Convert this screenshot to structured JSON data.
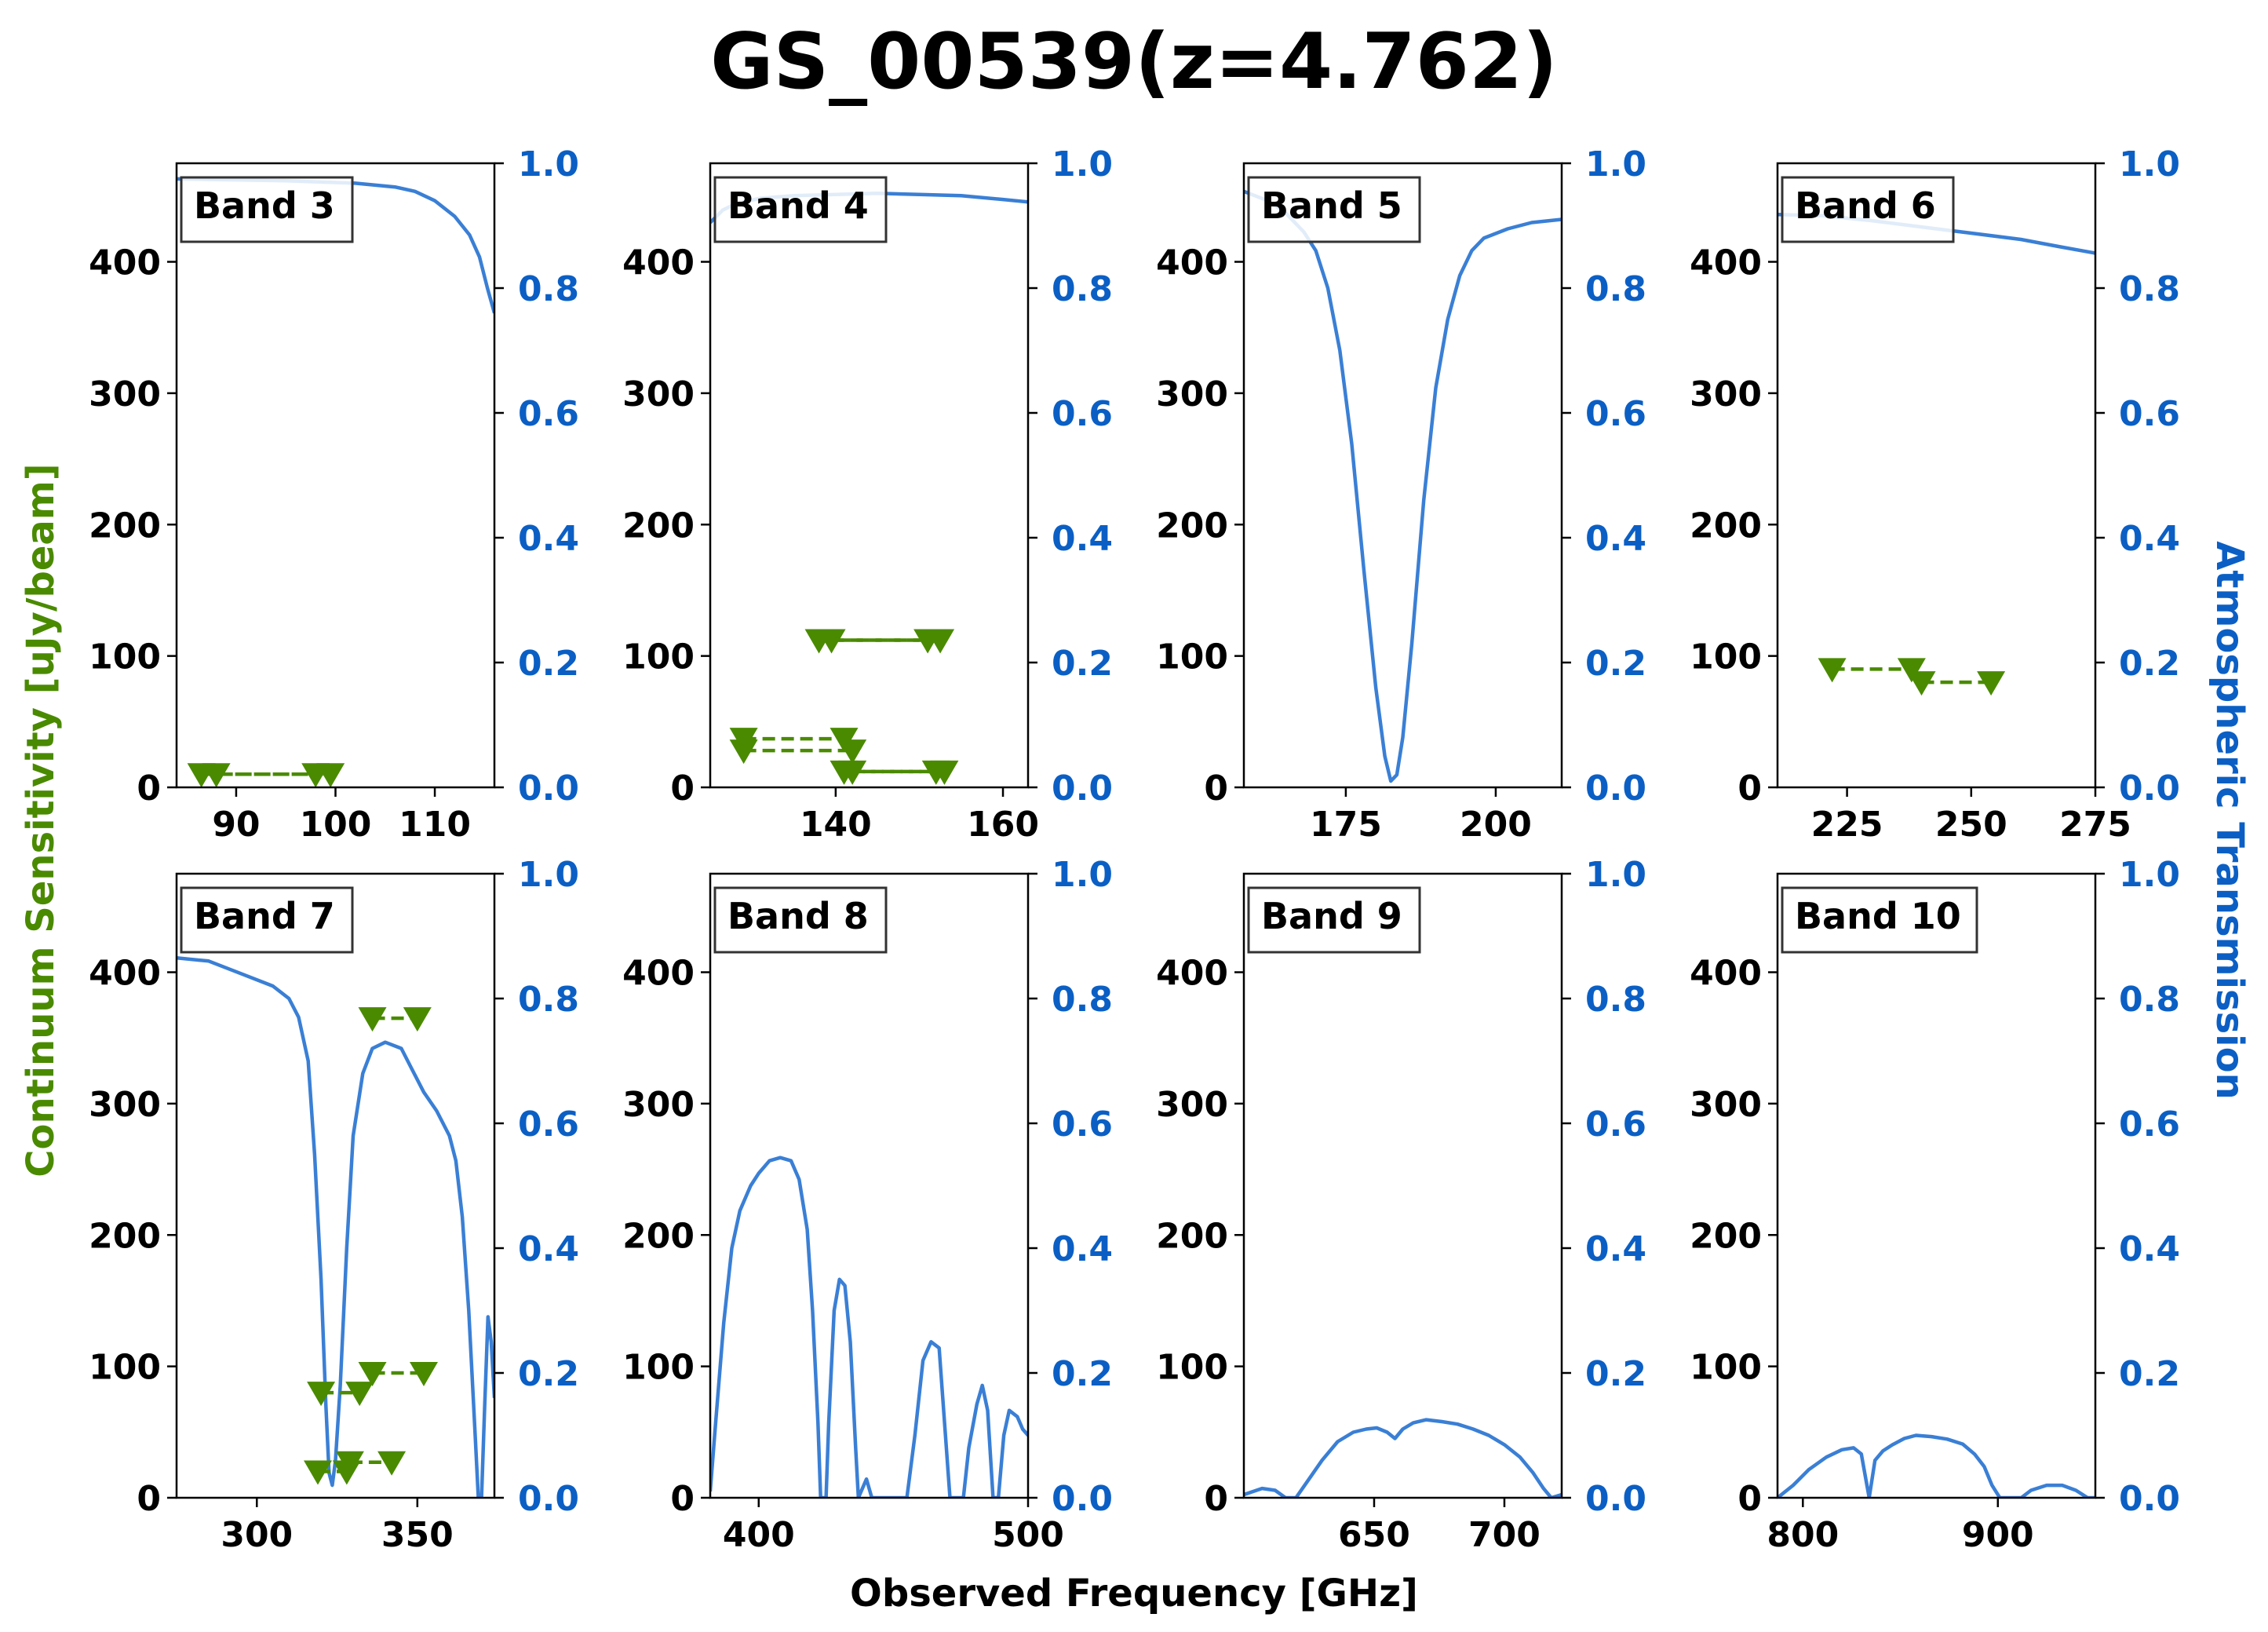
{
  "title": "GS_00539(z=4.762)",
  "colors": {
    "transmission": "#3a7fd5",
    "sensitivity": "#4a8a00",
    "right_axis": "#0b5fc4"
  },
  "labels": {
    "xlabel": "Observed Frequency [GHz]",
    "ylabel_left": "Continuum Sensitivity [uJy/beam]",
    "ylabel_right": "Atmospheric Transmission"
  },
  "chart_data": [
    {
      "type": "line",
      "band": "Band 3",
      "xlim": [
        84,
        116
      ],
      "ylim_left": [
        0,
        475
      ],
      "ylim_right": [
        0,
        1
      ],
      "xticks": [
        90,
        100,
        110
      ],
      "yticks_left": [
        0,
        100,
        200,
        300,
        400
      ],
      "yticks_right": [
        0.0,
        0.2,
        0.4,
        0.6,
        0.8,
        1.0
      ],
      "transmission": [
        [
          84,
          0.975
        ],
        [
          95,
          0.972
        ],
        [
          102,
          0.968
        ],
        [
          106,
          0.962
        ],
        [
          108,
          0.955
        ],
        [
          110,
          0.94
        ],
        [
          112,
          0.915
        ],
        [
          113.5,
          0.885
        ],
        [
          114.5,
          0.85
        ],
        [
          115.3,
          0.8
        ],
        [
          116,
          0.76
        ]
      ],
      "sensitivity": [
        {
          "x": [
            86.5,
            98
          ],
          "y": [
            10,
            10
          ]
        },
        {
          "x": [
            88,
            99.5
          ],
          "y": [
            10,
            10
          ]
        }
      ]
    },
    {
      "type": "line",
      "band": "Band 4",
      "xlim": [
        125,
        163
      ],
      "ylim_left": [
        0,
        475
      ],
      "ylim_right": [
        0,
        1
      ],
      "xticks": [
        140,
        160
      ],
      "yticks_left": [
        0,
        100,
        200,
        300,
        400
      ],
      "yticks_right": [
        0.0,
        0.2,
        0.4,
        0.6,
        0.8,
        1.0
      ],
      "transmission": [
        [
          125,
          0.905
        ],
        [
          126.5,
          0.925
        ],
        [
          128,
          0.935
        ],
        [
          131,
          0.944
        ],
        [
          135,
          0.948
        ],
        [
          140,
          0.95
        ],
        [
          145,
          0.952
        ],
        [
          150,
          0.95
        ],
        [
          155,
          0.948
        ],
        [
          160,
          0.942
        ],
        [
          163,
          0.938
        ]
      ],
      "sensitivity": [
        {
          "x": [
            138,
            151
          ],
          "y": [
            112,
            112
          ]
        },
        {
          "x": [
            139.5,
            152.5
          ],
          "y": [
            112,
            112
          ]
        },
        {
          "x": [
            129,
            141
          ],
          "y": [
            37,
            37
          ]
        },
        {
          "x": [
            129,
            142
          ],
          "y": [
            28,
            28
          ]
        },
        {
          "x": [
            141,
            152
          ],
          "y": [
            12,
            12
          ]
        },
        {
          "x": [
            142,
            153
          ],
          "y": [
            12,
            12
          ]
        }
      ]
    },
    {
      "type": "line",
      "band": "Band 5",
      "xlim": [
        158,
        211
      ],
      "ylim_left": [
        0,
        475
      ],
      "ylim_right": [
        0,
        1
      ],
      "xticks": [
        175,
        200
      ],
      "yticks_left": [
        0,
        100,
        200,
        300,
        400
      ],
      "yticks_right": [
        0.0,
        0.2,
        0.4,
        0.6,
        0.8,
        1.0
      ],
      "transmission": [
        [
          158,
          0.955
        ],
        [
          162,
          0.94
        ],
        [
          165,
          0.92
        ],
        [
          168,
          0.89
        ],
        [
          170,
          0.86
        ],
        [
          172,
          0.8
        ],
        [
          174,
          0.7
        ],
        [
          176,
          0.55
        ],
        [
          178,
          0.35
        ],
        [
          180,
          0.16
        ],
        [
          181.5,
          0.05
        ],
        [
          182.5,
          0.01
        ],
        [
          183.5,
          0.02
        ],
        [
          184.5,
          0.08
        ],
        [
          186,
          0.23
        ],
        [
          188,
          0.46
        ],
        [
          190,
          0.64
        ],
        [
          192,
          0.75
        ],
        [
          194,
          0.82
        ],
        [
          196,
          0.86
        ],
        [
          198,
          0.88
        ],
        [
          202,
          0.895
        ],
        [
          206,
          0.905
        ],
        [
          211,
          0.91
        ]
      ],
      "sensitivity": []
    },
    {
      "type": "line",
      "band": "Band 6",
      "xlim": [
        211,
        275
      ],
      "ylim_left": [
        0,
        475
      ],
      "ylim_right": [
        0,
        1
      ],
      "xticks": [
        225,
        250,
        275
      ],
      "yticks_left": [
        0,
        100,
        200,
        300,
        400
      ],
      "yticks_right": [
        0.0,
        0.2,
        0.4,
        0.6,
        0.8,
        1.0
      ],
      "transmission": [
        [
          211,
          0.918
        ],
        [
          220,
          0.916
        ],
        [
          230,
          0.908
        ],
        [
          240,
          0.898
        ],
        [
          250,
          0.888
        ],
        [
          260,
          0.878
        ],
        [
          268,
          0.866
        ],
        [
          275,
          0.856
        ]
      ],
      "sensitivity": [
        {
          "x": [
            222,
            238
          ],
          "y": [
            90,
            90
          ]
        },
        {
          "x": [
            240,
            254
          ],
          "y": [
            80,
            80
          ]
        }
      ]
    },
    {
      "type": "line",
      "band": "Band 7",
      "xlim": [
        275,
        374
      ],
      "ylim_left": [
        0,
        475
      ],
      "ylim_right": [
        0,
        1
      ],
      "xticks": [
        300,
        350
      ],
      "yticks_left": [
        0,
        100,
        200,
        300,
        400
      ],
      "yticks_right": [
        0.0,
        0.2,
        0.4,
        0.6,
        0.8,
        1.0
      ],
      "transmission": [
        [
          275,
          0.865
        ],
        [
          285,
          0.86
        ],
        [
          295,
          0.84
        ],
        [
          305,
          0.82
        ],
        [
          310,
          0.8
        ],
        [
          313,
          0.77
        ],
        [
          316,
          0.7
        ],
        [
          318,
          0.55
        ],
        [
          320,
          0.35
        ],
        [
          321.5,
          0.15
        ],
        [
          322.5,
          0.04
        ],
        [
          323.5,
          0.02
        ],
        [
          324.5,
          0.06
        ],
        [
          326,
          0.18
        ],
        [
          328,
          0.4
        ],
        [
          330,
          0.58
        ],
        [
          333,
          0.68
        ],
        [
          336,
          0.72
        ],
        [
          340,
          0.73
        ],
        [
          345,
          0.72
        ],
        [
          348,
          0.69
        ],
        [
          352,
          0.65
        ],
        [
          356,
          0.62
        ],
        [
          360,
          0.58
        ],
        [
          362,
          0.54
        ],
        [
          364,
          0.45
        ],
        [
          366,
          0.3
        ],
        [
          368,
          0.1
        ],
        [
          369,
          0.0
        ],
        [
          370,
          0.0
        ],
        [
          371,
          0.15
        ],
        [
          372,
          0.29
        ],
        [
          373,
          0.25
        ],
        [
          374,
          0.16
        ]
      ],
      "sensitivity": [
        {
          "x": [
            336,
            350
          ],
          "y": [
            365,
            365
          ]
        },
        {
          "x": [
            320,
            332
          ],
          "y": [
            80,
            80
          ]
        },
        {
          "x": [
            336,
            352
          ],
          "y": [
            95,
            95
          ]
        },
        {
          "x": [
            319,
            328
          ],
          "y": [
            20,
            20
          ]
        },
        {
          "x": [
            329,
            342
          ],
          "y": [
            27,
            27
          ]
        }
      ]
    },
    {
      "type": "line",
      "band": "Band 8",
      "xlim": [
        382,
        500
      ],
      "ylim_left": [
        0,
        475
      ],
      "ylim_right": [
        0,
        1
      ],
      "xticks": [
        400,
        500
      ],
      "yticks_left": [
        0,
        100,
        200,
        300,
        400
      ],
      "yticks_right": [
        0.0,
        0.2,
        0.4,
        0.6,
        0.8,
        1.0
      ],
      "transmission": [
        [
          382,
          0.01
        ],
        [
          384,
          0.12
        ],
        [
          387,
          0.28
        ],
        [
          390,
          0.4
        ],
        [
          393,
          0.46
        ],
        [
          397,
          0.5
        ],
        [
          400,
          0.52
        ],
        [
          404,
          0.54
        ],
        [
          408,
          0.545
        ],
        [
          412,
          0.54
        ],
        [
          415,
          0.51
        ],
        [
          418,
          0.43
        ],
        [
          420,
          0.3
        ],
        [
          422,
          0.12
        ],
        [
          423,
          0.0
        ],
        [
          425,
          0.0
        ],
        [
          426,
          0.12
        ],
        [
          428,
          0.3
        ],
        [
          430,
          0.35
        ],
        [
          432,
          0.34
        ],
        [
          434,
          0.25
        ],
        [
          436,
          0.08
        ],
        [
          437,
          0.0
        ],
        [
          440,
          0.03
        ],
        [
          442,
          0.0
        ],
        [
          455,
          0.0
        ],
        [
          458,
          0.1
        ],
        [
          461,
          0.22
        ],
        [
          464,
          0.25
        ],
        [
          467,
          0.24
        ],
        [
          469,
          0.12
        ],
        [
          471,
          0.0
        ],
        [
          476,
          0.0
        ],
        [
          478,
          0.08
        ],
        [
          481,
          0.15
        ],
        [
          483,
          0.18
        ],
        [
          485,
          0.14
        ],
        [
          487,
          0.0
        ],
        [
          489,
          0.0
        ],
        [
          491,
          0.1
        ],
        [
          493,
          0.14
        ],
        [
          496,
          0.13
        ],
        [
          498,
          0.11
        ],
        [
          500,
          0.1
        ]
      ],
      "sensitivity": []
    },
    {
      "type": "line",
      "band": "Band 9",
      "xlim": [
        600,
        722
      ],
      "ylim_left": [
        0,
        475
      ],
      "ylim_right": [
        0,
        1
      ],
      "xticks": [
        650,
        700
      ],
      "yticks_left": [
        0,
        100,
        200,
        300,
        400
      ],
      "yticks_right": [
        0.0,
        0.2,
        0.4,
        0.6,
        0.8,
        1.0
      ],
      "transmission": [
        [
          600,
          0.005
        ],
        [
          607,
          0.015
        ],
        [
          612,
          0.012
        ],
        [
          616,
          0.0
        ],
        [
          620,
          0.0
        ],
        [
          625,
          0.03
        ],
        [
          630,
          0.06
        ],
        [
          636,
          0.09
        ],
        [
          642,
          0.105
        ],
        [
          647,
          0.11
        ],
        [
          651,
          0.112
        ],
        [
          655,
          0.105
        ],
        [
          658,
          0.095
        ],
        [
          661,
          0.11
        ],
        [
          665,
          0.12
        ],
        [
          670,
          0.125
        ],
        [
          676,
          0.122
        ],
        [
          682,
          0.118
        ],
        [
          688,
          0.11
        ],
        [
          694,
          0.1
        ],
        [
          700,
          0.085
        ],
        [
          706,
          0.065
        ],
        [
          711,
          0.04
        ],
        [
          715,
          0.015
        ],
        [
          718,
          0.0
        ],
        [
          722,
          0.005
        ]
      ],
      "sensitivity": []
    },
    {
      "type": "line",
      "band": "Band 10",
      "xlim": [
        787,
        950
      ],
      "ylim_left": [
        0,
        475
      ],
      "ylim_right": [
        0,
        1
      ],
      "xticks": [
        800,
        900
      ],
      "yticks_left": [
        0,
        100,
        200,
        300,
        400
      ],
      "yticks_right": [
        0.0,
        0.2,
        0.4,
        0.6,
        0.8,
        1.0
      ],
      "transmission": [
        [
          787,
          0.0
        ],
        [
          795,
          0.02
        ],
        [
          803,
          0.045
        ],
        [
          812,
          0.065
        ],
        [
          820,
          0.077
        ],
        [
          826,
          0.08
        ],
        [
          830,
          0.07
        ],
        [
          834,
          0.0
        ],
        [
          837,
          0.06
        ],
        [
          841,
          0.075
        ],
        [
          846,
          0.085
        ],
        [
          852,
          0.095
        ],
        [
          858,
          0.1
        ],
        [
          866,
          0.098
        ],
        [
          874,
          0.094
        ],
        [
          882,
          0.086
        ],
        [
          888,
          0.07
        ],
        [
          893,
          0.05
        ],
        [
          897,
          0.02
        ],
        [
          901,
          0.0
        ],
        [
          912,
          0.0
        ],
        [
          917,
          0.012
        ],
        [
          925,
          0.02
        ],
        [
          933,
          0.02
        ],
        [
          940,
          0.012
        ],
        [
          946,
          0.0
        ],
        [
          950,
          0.0
        ]
      ],
      "sensitivity": []
    }
  ]
}
